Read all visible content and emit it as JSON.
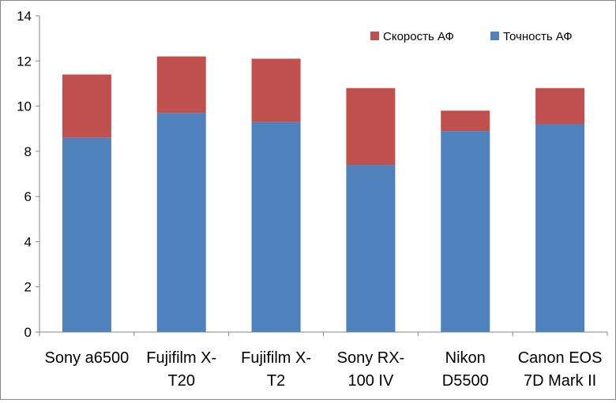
{
  "chart_data": {
    "type": "bar",
    "stacked": true,
    "title": "",
    "xlabel": "",
    "ylabel": "",
    "ylim": [
      0,
      14
    ],
    "yticks": [
      0,
      2,
      4,
      6,
      8,
      10,
      12,
      14
    ],
    "grid": false,
    "legend_position": "top-right",
    "categories": [
      [
        "Sony a6500"
      ],
      [
        "Fujifilm X-",
        "T20"
      ],
      [
        "Fujifilm X-",
        "T2"
      ],
      [
        "Sony RX-",
        "100 IV"
      ],
      [
        "Nikon",
        "D5500"
      ],
      [
        "Canon EOS",
        "7D Mark II"
      ]
    ],
    "series": [
      {
        "name": "Точность АФ",
        "color": "#4f81bd",
        "values": [
          8.6,
          9.7,
          9.3,
          7.4,
          8.9,
          9.2
        ]
      },
      {
        "name": "Скорость АФ",
        "color": "#c0504d",
        "values": [
          2.8,
          2.5,
          2.8,
          3.4,
          0.9,
          1.6
        ]
      }
    ],
    "legend_order": [
      1,
      0
    ]
  }
}
